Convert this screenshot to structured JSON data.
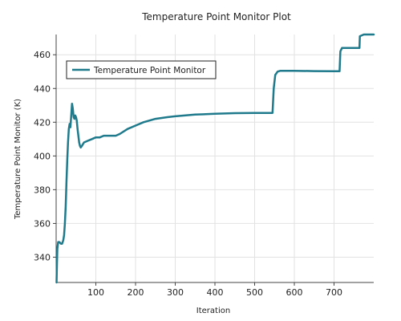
{
  "chart_data": {
    "type": "line",
    "title": "Temperature Point Monitor Plot",
    "xlabel": "Iteration",
    "ylabel": "Temperature Point Monitor (K)",
    "xlim": [
      0,
      800
    ],
    "ylim": [
      325,
      472
    ],
    "x_ticks": [
      100,
      200,
      300,
      400,
      500,
      600,
      700
    ],
    "y_ticks": [
      340,
      360,
      380,
      400,
      420,
      440,
      460
    ],
    "grid": true,
    "legend_position": "top-left",
    "series": [
      {
        "name": "Temperature Point Monitor",
        "color": "#1f7a8c",
        "points": [
          [
            1,
            325
          ],
          [
            2,
            336
          ],
          [
            3,
            345
          ],
          [
            5,
            349
          ],
          [
            8,
            349
          ],
          [
            12,
            348
          ],
          [
            15,
            348
          ],
          [
            18,
            350
          ],
          [
            20,
            353
          ],
          [
            22,
            360
          ],
          [
            24,
            370
          ],
          [
            26,
            385
          ],
          [
            28,
            398
          ],
          [
            30,
            408
          ],
          [
            32,
            416
          ],
          [
            34,
            419
          ],
          [
            36,
            417
          ],
          [
            38,
            424
          ],
          [
            40,
            431
          ],
          [
            42,
            428
          ],
          [
            44,
            423
          ],
          [
            46,
            422
          ],
          [
            48,
            424
          ],
          [
            50,
            423
          ],
          [
            52,
            421
          ],
          [
            54,
            416
          ],
          [
            56,
            412
          ],
          [
            58,
            408
          ],
          [
            60,
            406
          ],
          [
            62,
            405
          ],
          [
            65,
            406
          ],
          [
            70,
            408
          ],
          [
            80,
            409
          ],
          [
            90,
            410
          ],
          [
            100,
            411
          ],
          [
            110,
            411
          ],
          [
            120,
            412
          ],
          [
            130,
            412
          ],
          [
            140,
            412
          ],
          [
            150,
            412
          ],
          [
            160,
            413
          ],
          [
            180,
            416
          ],
          [
            200,
            418
          ],
          [
            220,
            420
          ],
          [
            250,
            422
          ],
          [
            280,
            423
          ],
          [
            300,
            423.5
          ],
          [
            350,
            424.5
          ],
          [
            400,
            425
          ],
          [
            450,
            425.4
          ],
          [
            500,
            425.5
          ],
          [
            545,
            425.5
          ],
          [
            548,
            440
          ],
          [
            552,
            448
          ],
          [
            558,
            450
          ],
          [
            565,
            450.5
          ],
          [
            600,
            450.5
          ],
          [
            650,
            450.3
          ],
          [
            700,
            450.2
          ],
          [
            714,
            450.2
          ],
          [
            716,
            462
          ],
          [
            720,
            464
          ],
          [
            750,
            464
          ],
          [
            764,
            464
          ],
          [
            765,
            471
          ],
          [
            775,
            472
          ],
          [
            800,
            472
          ]
        ]
      }
    ]
  }
}
